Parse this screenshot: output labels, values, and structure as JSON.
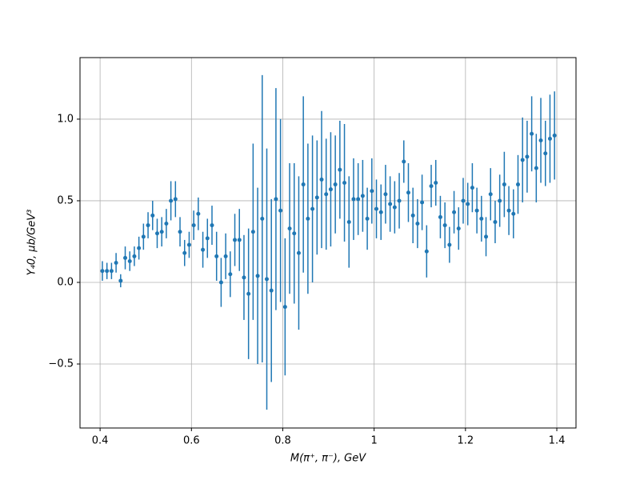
{
  "chart_data": {
    "type": "errorbar",
    "xlabel": "M(π⁺, π⁻), GeV",
    "ylabel": "Y₄0, μb/GeV³",
    "color": "#1f77b4",
    "grid": true,
    "xlim": [
      0.356,
      1.442
    ],
    "ylim": [
      -0.892,
      1.377
    ],
    "xticks": [
      0.4,
      0.6,
      0.8,
      1.0,
      1.2,
      1.4
    ],
    "yticks": [
      {
        "value": -0.5,
        "label": "−0.5"
      },
      {
        "value": 0,
        "label": "0.0"
      },
      {
        "value": 0.5,
        "label": "0.5"
      },
      {
        "value": 1.0,
        "label": "1.0"
      }
    ],
    "x": [
      0.405,
      0.415,
      0.425,
      0.435,
      0.445,
      0.455,
      0.465,
      0.475,
      0.485,
      0.495,
      0.505,
      0.515,
      0.525,
      0.535,
      0.545,
      0.555,
      0.565,
      0.575,
      0.585,
      0.595,
      0.605,
      0.615,
      0.625,
      0.635,
      0.645,
      0.655,
      0.665,
      0.675,
      0.685,
      0.695,
      0.705,
      0.715,
      0.725,
      0.735,
      0.745,
      0.755,
      0.765,
      0.775,
      0.785,
      0.795,
      0.805,
      0.815,
      0.825,
      0.835,
      0.845,
      0.855,
      0.865,
      0.875,
      0.885,
      0.895,
      0.905,
      0.915,
      0.925,
      0.935,
      0.945,
      0.955,
      0.965,
      0.975,
      0.985,
      0.995,
      1.005,
      1.015,
      1.025,
      1.035,
      1.045,
      1.055,
      1.065,
      1.075,
      1.085,
      1.095,
      1.105,
      1.115,
      1.125,
      1.135,
      1.145,
      1.155,
      1.165,
      1.175,
      1.185,
      1.195,
      1.205,
      1.215,
      1.225,
      1.235,
      1.245,
      1.255,
      1.265,
      1.275,
      1.285,
      1.295,
      1.305,
      1.315,
      1.325,
      1.335,
      1.345,
      1.355,
      1.365,
      1.375,
      1.385,
      1.395
    ],
    "values": [
      0.07,
      0.07,
      0.07,
      0.12,
      0.01,
      0.15,
      0.13,
      0.16,
      0.21,
      0.28,
      0.35,
      0.41,
      0.3,
      0.31,
      0.36,
      0.5,
      0.51,
      0.31,
      0.18,
      0.23,
      0.35,
      0.42,
      0.2,
      0.27,
      0.35,
      0.16,
      0.0,
      0.16,
      0.05,
      0.26,
      0.26,
      0.03,
      -0.07,
      0.31,
      0.04,
      0.39,
      0.02,
      -0.05,
      0.51,
      0.44,
      -0.15,
      0.33,
      0.3,
      0.18,
      0.6,
      0.39,
      0.45,
      0.52,
      0.63,
      0.54,
      0.57,
      0.6,
      0.69,
      0.61,
      0.37,
      0.51,
      0.51,
      0.53,
      0.39,
      0.56,
      0.45,
      0.43,
      0.54,
      0.48,
      0.46,
      0.5,
      0.74,
      0.55,
      0.41,
      0.36,
      0.49,
      0.19,
      0.59,
      0.61,
      0.4,
      0.35,
      0.23,
      0.43,
      0.33,
      0.5,
      0.48,
      0.58,
      0.44,
      0.39,
      0.28,
      0.54,
      0.37,
      0.5,
      0.6,
      0.44,
      0.42,
      0.6,
      0.75,
      0.77,
      0.91,
      0.7,
      0.87,
      0.79,
      0.88,
      0.9
    ],
    "errors": [
      0.06,
      0.05,
      0.05,
      0.06,
      0.04,
      0.07,
      0.06,
      0.06,
      0.07,
      0.08,
      0.08,
      0.09,
      0.09,
      0.09,
      0.09,
      0.12,
      0.11,
      0.09,
      0.08,
      0.08,
      0.09,
      0.1,
      0.11,
      0.12,
      0.12,
      0.15,
      0.15,
      0.14,
      0.14,
      0.16,
      0.19,
      0.26,
      0.4,
      0.54,
      0.54,
      0.88,
      0.8,
      0.56,
      0.68,
      0.56,
      0.42,
      0.4,
      0.43,
      0.47,
      0.54,
      0.46,
      0.45,
      0.35,
      0.42,
      0.34,
      0.35,
      0.3,
      0.3,
      0.36,
      0.28,
      0.25,
      0.22,
      0.22,
      0.19,
      0.2,
      0.18,
      0.17,
      0.18,
      0.17,
      0.16,
      0.17,
      0.13,
      0.18,
      0.17,
      0.15,
      0.17,
      0.16,
      0.13,
      0.14,
      0.13,
      0.14,
      0.11,
      0.13,
      0.13,
      0.14,
      0.13,
      0.15,
      0.14,
      0.14,
      0.12,
      0.16,
      0.13,
      0.16,
      0.2,
      0.15,
      0.15,
      0.18,
      0.26,
      0.22,
      0.23,
      0.21,
      0.26,
      0.2,
      0.27,
      0.27
    ]
  }
}
